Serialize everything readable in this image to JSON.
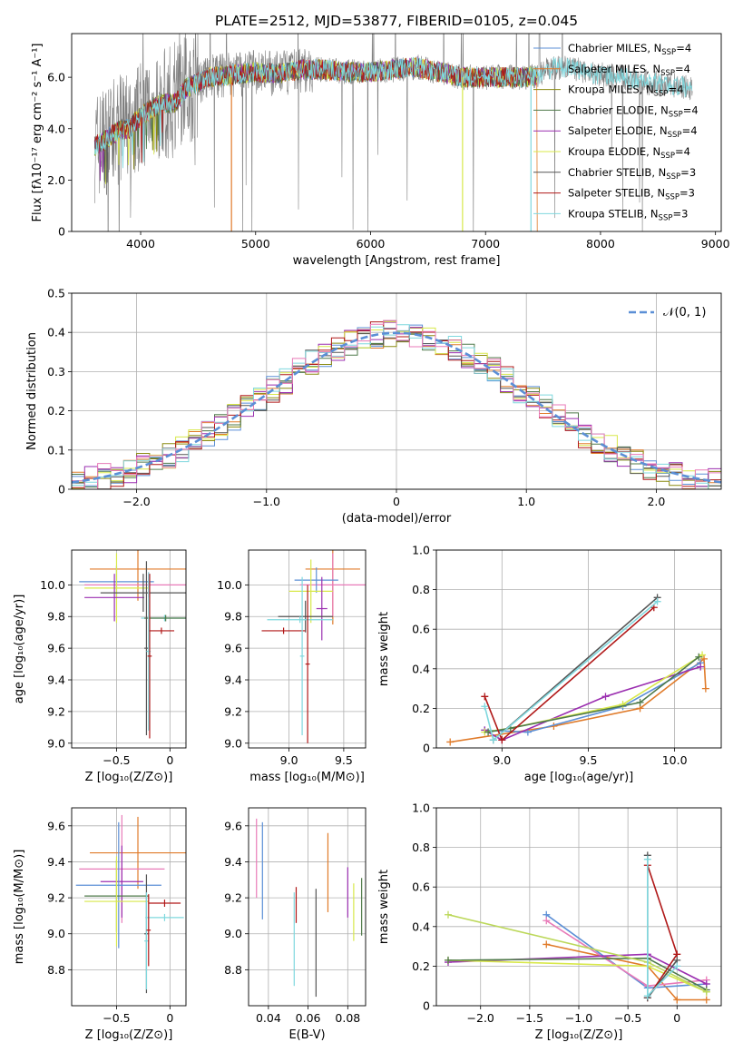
{
  "colors": {
    "Chabrier MILES": "#5b8fd6",
    "Salpeter MILES": "#e07b2a",
    "Kroupa MILES": "#8a8a10",
    "Chabrier ELODIE": "#4f7a4a",
    "Salpeter ELODIE": "#9b2fb0",
    "Kroupa ELODIE": "#d8e84a",
    "Chabrier STELIB": "#555555",
    "Salpeter STELIB": "#b01818",
    "Kroupa STELIB": "#7fd8de",
    "extra1": "#e87ab8",
    "extra2": "#bcd85a",
    "normal": "#5b8fd6",
    "data": "#808080"
  },
  "chart_data": [
    {
      "id": "spectrum",
      "type": "line",
      "title": "PLATE=2512, MJD=53877, FIBERID=0105, z=0.045",
      "xlabel": "wavelength [Angstrom, rest frame]",
      "ylabel": "Flux [fλ10⁻¹⁷ erg cm⁻² s⁻¹ A⁻¹]",
      "xlim": [
        3400,
        9050
      ],
      "ylim": [
        0,
        7.7
      ],
      "xticks": [
        4000,
        5000,
        6000,
        7000,
        8000,
        9000
      ],
      "yticks": [
        0,
        2,
        4,
        6
      ],
      "grid": false,
      "legend_position": "top-right",
      "continuum_x": [
        3600,
        3700,
        3800,
        3900,
        4000,
        4100,
        4200,
        4300,
        4400,
        4500,
        4600,
        4800,
        5000,
        5200,
        5400,
        5600,
        5800,
        6000,
        6200,
        6400,
        6600,
        6800,
        7000,
        7200,
        7400,
        7600,
        7800,
        8000,
        8200,
        8400,
        8600,
        8800
      ],
      "continuum_y": [
        3.3,
        3.6,
        3.9,
        4.0,
        4.5,
        4.8,
        5.0,
        5.0,
        5.6,
        5.8,
        6.0,
        6.1,
        6.2,
        6.15,
        6.3,
        6.3,
        6.2,
        6.2,
        6.3,
        6.4,
        6.2,
        6.0,
        6.0,
        6.0,
        6.0,
        6.4,
        6.3,
        6.1,
        6.0,
        5.8,
        5.7,
        5.6
      ],
      "model_xmax": 7450,
      "legend": [
        {
          "name": "Chabrier MILES",
          "n_ssp": "4"
        },
        {
          "name": "Salpeter MILES",
          "n_ssp": "4"
        },
        {
          "name": "Kroupa MILES",
          "n_ssp": "4"
        },
        {
          "name": "Chabrier ELODIE",
          "n_ssp": "4"
        },
        {
          "name": "Salpeter ELODIE",
          "n_ssp": "4"
        },
        {
          "name": "Kroupa ELODIE",
          "n_ssp": "4"
        },
        {
          "name": "Chabrier STELIB",
          "n_ssp": "3"
        },
        {
          "name": "Salpeter STELIB",
          "n_ssp": "3"
        },
        {
          "name": "Kroupa STELIB",
          "n_ssp": "3"
        }
      ]
    },
    {
      "id": "residuals",
      "type": "line",
      "xlabel": "(data-model)/error",
      "ylabel": "Normed distribution",
      "xlim": [
        -2.5,
        2.5
      ],
      "ylim": [
        0,
        0.5
      ],
      "xticks": [
        -2,
        -1,
        0,
        1,
        2
      ],
      "yticks": [
        0.0,
        0.1,
        0.2,
        0.3,
        0.4,
        0.5
      ],
      "grid": true,
      "legend_position": "top-right",
      "normal_label": "𝒩(0, 1)",
      "bin_width": 0.1
    },
    {
      "id": "age_vs_Z",
      "type": "scatter",
      "xlabel": "Z [log₁₀(Z/Z⊙)]",
      "ylabel": "age  [log₁₀(age/yr)]",
      "xlim": [
        -0.92,
        0.15
      ],
      "ylim": [
        8.97,
        10.22
      ],
      "xticks": [
        -0.5,
        0.0
      ],
      "yticks": [
        9.0,
        9.2,
        9.4,
        9.6,
        9.8,
        10.0
      ],
      "grid": true,
      "points": [
        {
          "series": "Salpeter MILES",
          "x": -0.3,
          "xerr": 0.45,
          "y": 10.1,
          "yerr": 0.2
        },
        {
          "series": "extra1",
          "x": -0.2,
          "xerr": 0.6,
          "y": 10.0,
          "yerr": 0.08
        },
        {
          "series": "Chabrier MILES",
          "x": -0.5,
          "xerr": 0.35,
          "y": 10.02,
          "yerr": 0.1
        },
        {
          "series": "Kroupa ELODIE",
          "x": -0.5,
          "xerr": 0.3,
          "y": 9.98,
          "yerr": 0.22
        },
        {
          "series": "Salpeter ELODIE",
          "x": -0.52,
          "xerr": 0.28,
          "y": 9.92,
          "yerr": 0.15
        },
        {
          "series": "Chabrier STELIB",
          "x": -0.25,
          "xerr": 0.4,
          "y": 9.95,
          "yerr": 0.12
        },
        {
          "series": "Kroupa STELIB",
          "x": -0.05,
          "xerr": 0.22,
          "y": 9.79,
          "yerr": 0.02
        },
        {
          "series": "Chabrier ELODIE",
          "x": -0.04,
          "xerr": 0.2,
          "y": 9.79,
          "yerr": 0.02
        },
        {
          "series": "Salpeter STELIB",
          "x": -0.08,
          "xerr": 0.12,
          "y": 9.71,
          "yerr": 0.02
        },
        {
          "series": "Chabrier STELIB",
          "x": -0.22,
          "xerr": 0.02,
          "y": 9.6,
          "yerr": 0.55
        },
        {
          "series": "Kroupa STELIB",
          "x": -0.2,
          "xerr": 0.02,
          "y": 9.58,
          "yerr": 0.5
        },
        {
          "series": "Salpeter STELIB",
          "x": -0.19,
          "xerr": 0.02,
          "y": 9.55,
          "yerr": 0.52
        }
      ]
    },
    {
      "id": "age_vs_mass",
      "type": "scatter",
      "xlabel": "mass [log₁₀(M/M⊙)]",
      "ylabel": "",
      "xlim": [
        8.63,
        9.7
      ],
      "ylim": [
        8.97,
        10.22
      ],
      "xticks": [
        9.0,
        9.5
      ],
      "yticks": [
        9.0,
        9.2,
        9.4,
        9.6,
        9.8,
        10.0
      ],
      "grid": true,
      "points": [
        {
          "series": "Salpeter MILES",
          "x": 9.4,
          "xerr": 0.25,
          "y": 10.1,
          "yerr": 0.35
        },
        {
          "series": "extra1",
          "x": 9.4,
          "xerr": 0.3,
          "y": 10.0,
          "yerr": 0.2
        },
        {
          "series": "Chabrier MILES",
          "x": 9.25,
          "xerr": 0.2,
          "y": 10.03,
          "yerr": 0.08
        },
        {
          "series": "Kroupa ELODIE",
          "x": 9.2,
          "xerr": 0.2,
          "y": 9.96,
          "yerr": 0.2
        },
        {
          "series": "Salpeter ELODIE",
          "x": 9.3,
          "xerr": 0.05,
          "y": 9.85,
          "yerr": 0.2
        },
        {
          "series": "Chabrier STELIB",
          "x": 9.15,
          "xerr": 0.25,
          "y": 9.8,
          "yerr": 0.1
        },
        {
          "series": "Kroupa STELIB",
          "x": 9.1,
          "xerr": 0.3,
          "y": 9.78,
          "yerr": 0.02
        },
        {
          "series": "Salpeter STELIB",
          "x": 8.95,
          "xerr": 0.2,
          "y": 9.71,
          "yerr": 0.02
        },
        {
          "series": "Salpeter STELIB",
          "x": 9.17,
          "xerr": 0.02,
          "y": 9.5,
          "yerr": 0.5
        },
        {
          "series": "Kroupa STELIB",
          "x": 9.12,
          "xerr": 0.02,
          "y": 9.55,
          "yerr": 0.5
        }
      ]
    },
    {
      "id": "weight_vs_age",
      "type": "line",
      "xlabel": "age  [log₁₀(age/yr)]",
      "ylabel": "mass weight",
      "xlim": [
        8.62,
        10.27
      ],
      "ylim": [
        0,
        1
      ],
      "xticks": [
        9.0,
        9.5,
        10.0
      ],
      "yticks": [
        0.0,
        0.2,
        0.4,
        0.6,
        0.8,
        1.0
      ],
      "grid": true,
      "series": [
        {
          "name": "Salpeter MILES",
          "x": [
            8.7,
            9.3,
            9.8,
            10.17,
            10.18
          ],
          "y": [
            0.03,
            0.11,
            0.2,
            0.45,
            0.3
          ]
        },
        {
          "name": "Chabrier MILES",
          "x": [
            8.9,
            9.15,
            9.7,
            10.15
          ],
          "y": [
            0.09,
            0.08,
            0.21,
            0.43
          ]
        },
        {
          "name": "Salpeter ELODIE",
          "x": [
            8.9,
            9.0,
            9.6,
            10.15
          ],
          "y": [
            0.09,
            0.04,
            0.26,
            0.41
          ]
        },
        {
          "name": "Kroupa ELODIE",
          "x": [
            8.9,
            9.05,
            9.7,
            10.16
          ],
          "y": [
            0.08,
            0.1,
            0.22,
            0.47
          ]
        },
        {
          "name": "Chabrier ELODIE",
          "x": [
            8.92,
            9.05,
            9.8,
            10.14
          ],
          "y": [
            0.08,
            0.1,
            0.23,
            0.46
          ]
        },
        {
          "name": "Chabrier STELIB",
          "x": [
            8.95,
            9.9
          ],
          "y": [
            0.04,
            0.76
          ]
        },
        {
          "name": "Salpeter STELIB",
          "x": [
            8.9,
            9.0,
            9.88
          ],
          "y": [
            0.26,
            0.04,
            0.71
          ]
        },
        {
          "name": "Kroupa STELIB",
          "x": [
            8.9,
            8.95,
            9.9
          ],
          "y": [
            0.21,
            0.04,
            0.74
          ]
        }
      ]
    },
    {
      "id": "mass_vs_Z",
      "type": "scatter",
      "xlabel": "Z [log₁₀(Z/Z⊙)]",
      "ylabel": "mass [log₁₀(M/M⊙)]",
      "xlim": [
        -0.92,
        0.15
      ],
      "ylim": [
        8.6,
        9.7
      ],
      "xticks": [
        -0.5,
        0.0
      ],
      "yticks": [
        8.8,
        9.0,
        9.2,
        9.4,
        9.6
      ],
      "grid": true,
      "points": [
        {
          "series": "Salpeter MILES",
          "x": -0.3,
          "xerr": 0.45,
          "y": 9.45,
          "yerr": 0.2
        },
        {
          "series": "extra1",
          "x": -0.45,
          "xerr": 0.4,
          "y": 9.36,
          "yerr": 0.3
        },
        {
          "series": "Salpeter ELODIE",
          "x": -0.45,
          "xerr": 0.2,
          "y": 9.29,
          "yerr": 0.2
        },
        {
          "series": "Chabrier MILES",
          "x": -0.48,
          "xerr": 0.4,
          "y": 9.27,
          "yerr": 0.35
        },
        {
          "series": "Chabrier ELODIE",
          "x": -0.5,
          "xerr": 0.3,
          "y": 9.21,
          "yerr": 0.2
        },
        {
          "series": "Kroupa ELODIE",
          "x": -0.5,
          "xerr": 0.3,
          "y": 9.18,
          "yerr": 0.25
        },
        {
          "series": "Salpeter STELIB",
          "x": -0.05,
          "xerr": 0.15,
          "y": 9.17,
          "yerr": 0.02
        },
        {
          "series": "Kroupa STELIB",
          "x": -0.05,
          "xerr": 0.18,
          "y": 9.09,
          "yerr": 0.02
        },
        {
          "series": "Chabrier STELIB",
          "x": -0.22,
          "xerr": 0.02,
          "y": 9.0,
          "yerr": 0.33
        },
        {
          "series": "Kroupa STELIB",
          "x": -0.22,
          "xerr": 0.02,
          "y": 8.96,
          "yerr": 0.27
        },
        {
          "series": "Salpeter STELIB",
          "x": -0.2,
          "xerr": 0.02,
          "y": 9.02,
          "yerr": 0.2
        }
      ]
    },
    {
      "id": "mass_vs_ebv",
      "type": "scatter",
      "xlabel": "E(B-V)",
      "ylabel": "",
      "xlim": [
        0.03,
        0.089
      ],
      "ylim": [
        8.6,
        9.7
      ],
      "xticks": [
        0.04,
        0.06,
        0.08
      ],
      "yticks": [
        8.8,
        9.0,
        9.2,
        9.4,
        9.6
      ],
      "grid": true,
      "points": [
        {
          "series": "extra1",
          "x": 0.034,
          "y": 9.42,
          "yerr": 0.22
        },
        {
          "series": "Chabrier MILES",
          "x": 0.037,
          "y": 9.35,
          "yerr": 0.27
        },
        {
          "series": "Kroupa STELIB",
          "x": 0.053,
          "y": 8.97,
          "yerr": 0.26
        },
        {
          "series": "Salpeter STELIB",
          "x": 0.054,
          "y": 9.16,
          "yerr": 0.1
        },
        {
          "series": "Chabrier STELIB",
          "x": 0.064,
          "y": 8.95,
          "yerr": 0.3
        },
        {
          "series": "Salpeter MILES",
          "x": 0.07,
          "y": 9.34,
          "yerr": 0.22
        },
        {
          "series": "Salpeter ELODIE",
          "x": 0.08,
          "y": 9.23,
          "yerr": 0.14
        },
        {
          "series": "Kroupa ELODIE",
          "x": 0.083,
          "y": 9.12,
          "yerr": 0.16
        },
        {
          "series": "Chabrier ELODIE",
          "x": 0.087,
          "y": 9.15,
          "yerr": 0.16
        }
      ]
    },
    {
      "id": "weight_vs_Z",
      "type": "line",
      "xlabel": "Z [log₁₀(Z/Z⊙)]",
      "ylabel": "mass weight",
      "xlim": [
        -2.45,
        0.45
      ],
      "ylim": [
        0,
        1
      ],
      "xticks": [
        -2.0,
        -1.5,
        -1.0,
        -0.5,
        0.0
      ],
      "yticks": [
        0.0,
        0.2,
        0.4,
        0.6,
        0.8,
        1.0
      ],
      "grid": true,
      "series": [
        {
          "name": "Salpeter MILES",
          "x": [
            -1.33,
            -0.3,
            0.0,
            0.3
          ],
          "y": [
            0.31,
            0.2,
            0.03,
            0.03
          ]
        },
        {
          "name": "Chabrier MILES",
          "x": [
            -1.33,
            -0.3,
            0.3
          ],
          "y": [
            0.46,
            0.09,
            0.11
          ]
        },
        {
          "name": "extra1",
          "x": [
            -1.33,
            -0.3,
            0.3
          ],
          "y": [
            0.43,
            0.1,
            0.13
          ]
        },
        {
          "name": "Salpeter ELODIE",
          "x": [
            -2.33,
            -0.3,
            0.3
          ],
          "y": [
            0.22,
            0.26,
            0.11
          ]
        },
        {
          "name": "Kroupa ELODIE",
          "x": [
            -2.33,
            -0.3,
            0.3
          ],
          "y": [
            0.23,
            0.2,
            0.07
          ]
        },
        {
          "name": "Chabrier ELODIE",
          "x": [
            -2.33,
            -0.3,
            0.3
          ],
          "y": [
            0.23,
            0.24,
            0.08
          ]
        },
        {
          "name": "extra2",
          "x": [
            -2.33,
            -0.3,
            0.3
          ],
          "y": [
            0.46,
            0.22,
            0.07
          ]
        },
        {
          "name": "Salpeter STELIB",
          "x": [
            -0.3,
            0.0,
            -0.3
          ],
          "y": [
            0.04,
            0.26,
            0.71
          ]
        },
        {
          "name": "Chabrier STELIB",
          "x": [
            -0.3,
            -0.3,
            0.0
          ],
          "y": [
            0.76,
            0.04,
            0.23
          ]
        },
        {
          "name": "Kroupa STELIB",
          "x": [
            -0.3,
            -0.3,
            0.0
          ],
          "y": [
            0.74,
            0.05,
            0.2
          ]
        }
      ]
    }
  ]
}
